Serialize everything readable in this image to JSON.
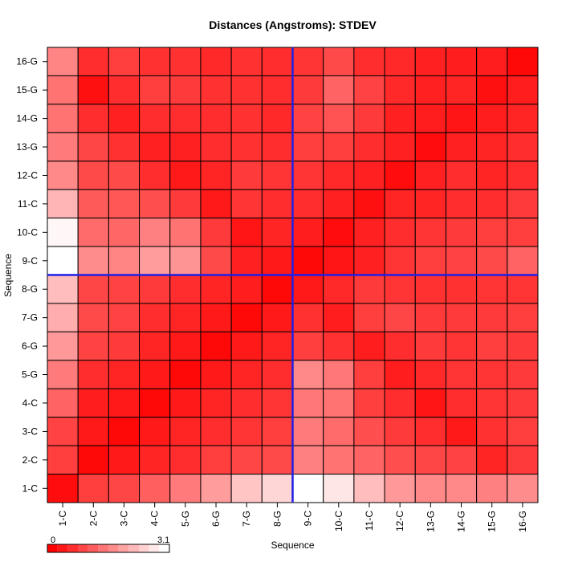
{
  "chart_data": {
    "type": "heatmap",
    "title": "Distances (Angstroms):  STDEV",
    "xlabel": "Sequence",
    "ylabel": "Sequence",
    "x_labels": [
      "1-C",
      "2-C",
      "3-C",
      "4-C",
      "5-G",
      "6-G",
      "7-G",
      "8-G",
      "9-C",
      "10-C",
      "11-C",
      "12-C",
      "13-G",
      "14-G",
      "15-G",
      "16-G"
    ],
    "y_labels": [
      "1-C",
      "2-C",
      "3-C",
      "4-C",
      "5-G",
      "6-G",
      "7-G",
      "8-G",
      "9-C",
      "10-C",
      "11-C",
      "12-C",
      "13-G",
      "14-G",
      "15-G",
      "16-G"
    ],
    "value_range": [
      0,
      3.1
    ],
    "color_scale": {
      "low": "#ff0000",
      "high": "#ffffff"
    },
    "rows_top_to_bottom": [
      {
        "y": "16-G",
        "values": [
          1.6,
          0.55,
          0.75,
          0.6,
          0.6,
          0.5,
          0.6,
          0.55,
          0.65,
          0.9,
          0.55,
          0.5,
          0.4,
          0.35,
          0.35,
          0.1
        ]
      },
      {
        "y": "15-G",
        "values": [
          1.4,
          0.2,
          0.55,
          0.75,
          0.7,
          0.6,
          0.6,
          0.55,
          0.7,
          1.2,
          0.8,
          0.5,
          0.4,
          0.45,
          0.2,
          0.35
        ]
      },
      {
        "y": "14-G",
        "values": [
          1.4,
          0.55,
          0.4,
          0.55,
          0.55,
          0.55,
          0.6,
          0.5,
          0.8,
          1.0,
          0.7,
          0.4,
          0.35,
          0.25,
          0.35,
          0.45
        ]
      },
      {
        "y": "13-G",
        "values": [
          1.5,
          0.85,
          0.6,
          0.4,
          0.4,
          0.55,
          0.6,
          0.55,
          0.75,
          0.75,
          0.55,
          0.4,
          0.15,
          0.4,
          0.45,
          0.55
        ]
      },
      {
        "y": "12-C",
        "values": [
          1.65,
          0.9,
          0.9,
          0.55,
          0.3,
          0.45,
          0.7,
          0.65,
          0.65,
          0.5,
          0.4,
          0.15,
          0.4,
          0.55,
          0.45,
          0.55
        ]
      },
      {
        "y": "11-C",
        "values": [
          2.2,
          1.1,
          1.05,
          0.95,
          0.7,
          0.3,
          0.65,
          0.55,
          0.55,
          0.4,
          0.2,
          0.45,
          0.45,
          0.55,
          0.55,
          0.7
        ]
      },
      {
        "y": "10-C",
        "values": [
          3.0,
          1.3,
          1.25,
          1.55,
          1.4,
          0.7,
          0.25,
          0.45,
          0.35,
          0.15,
          0.4,
          0.55,
          0.65,
          0.7,
          0.75,
          0.75
        ]
      },
      {
        "y": "9-C",
        "values": [
          3.1,
          1.7,
          1.6,
          1.9,
          1.8,
          0.9,
          0.4,
          0.3,
          0.1,
          0.25,
          0.4,
          0.65,
          0.75,
          0.8,
          0.9,
          1.2
        ]
      },
      {
        "y": "8-G",
        "values": [
          2.3,
          0.85,
          0.8,
          0.7,
          0.55,
          0.45,
          0.35,
          0.1,
          0.3,
          0.5,
          0.7,
          0.65,
          0.6,
          0.6,
          0.65,
          0.65
        ]
      },
      {
        "y": "7-G",
        "values": [
          2.1,
          0.9,
          0.8,
          0.55,
          0.45,
          0.3,
          0.1,
          0.3,
          0.6,
          0.35,
          0.75,
          0.85,
          0.7,
          0.7,
          0.7,
          0.75
        ]
      },
      {
        "y": "6-G",
        "values": [
          1.85,
          0.8,
          0.7,
          0.45,
          0.3,
          0.1,
          0.3,
          0.45,
          0.75,
          0.6,
          0.35,
          0.55,
          0.7,
          0.65,
          0.75,
          0.7
        ]
      },
      {
        "y": "5-G",
        "values": [
          1.5,
          0.55,
          0.45,
          0.3,
          0.1,
          0.3,
          0.45,
          0.55,
          1.65,
          1.45,
          0.75,
          0.35,
          0.5,
          0.65,
          0.65,
          0.7
        ]
      },
      {
        "y": "4-C",
        "values": [
          1.2,
          0.35,
          0.3,
          0.1,
          0.3,
          0.45,
          0.55,
          0.65,
          1.45,
          1.4,
          0.75,
          0.55,
          0.25,
          0.55,
          0.65,
          0.7
        ]
      },
      {
        "y": "3-C",
        "values": [
          0.8,
          0.3,
          0.1,
          0.3,
          0.45,
          0.55,
          0.65,
          0.75,
          1.5,
          1.3,
          0.95,
          0.7,
          0.55,
          0.3,
          0.6,
          0.75
        ]
      },
      {
        "y": "2-C",
        "values": [
          0.75,
          0.1,
          0.3,
          0.45,
          0.55,
          0.75,
          0.85,
          0.9,
          1.55,
          1.4,
          1.2,
          0.95,
          0.85,
          0.8,
          0.45,
          0.7
        ]
      },
      {
        "y": "1-C",
        "values": [
          0.15,
          0.75,
          0.85,
          1.15,
          1.5,
          1.9,
          2.4,
          2.6,
          3.1,
          2.8,
          2.3,
          1.85,
          1.65,
          1.65,
          1.55,
          1.7
        ]
      }
    ],
    "highlight": {
      "row": "8-G",
      "column": "9-C",
      "color": "#1f1fe6"
    },
    "legend": {
      "min_label": "0",
      "max_label": "3.1"
    },
    "grid": true
  }
}
